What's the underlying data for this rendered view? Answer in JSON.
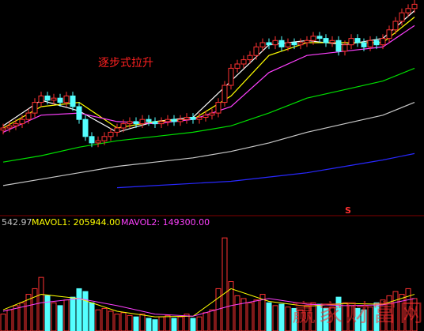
{
  "chart_data": {
    "type": "candlestick",
    "annotation": "逐步式拉升",
    "signal": "S",
    "watermark": "赢家财富网",
    "vol_label": "542.97",
    "mavol1_label": "MAVOL1: 205944.00",
    "mavol2_label": "MAVOL2: 149300.00",
    "up_color": "#ff3232",
    "down_color": "#54ffff",
    "ylim": [
      0,
      100
    ],
    "open": [
      39,
      40,
      41,
      42,
      44,
      47,
      52,
      55,
      53,
      54,
      52,
      55,
      50,
      44,
      36,
      33,
      34,
      36,
      38,
      40,
      42,
      43,
      42,
      44,
      43,
      42,
      43,
      44,
      43,
      44,
      45,
      44,
      45,
      46,
      47,
      52,
      60,
      68,
      70,
      72,
      74,
      78,
      80,
      79,
      81,
      78,
      80,
      79,
      80,
      81,
      83,
      82,
      80,
      81,
      76,
      79,
      82,
      80,
      78,
      81,
      79,
      82,
      86,
      90,
      94,
      96
    ],
    "close": [
      40,
      41,
      42,
      44,
      47,
      52,
      55,
      53,
      54,
      52,
      55,
      50,
      44,
      36,
      33,
      34,
      36,
      38,
      40,
      42,
      43,
      42,
      44,
      43,
      42,
      43,
      44,
      43,
      44,
      45,
      44,
      45,
      46,
      47,
      52,
      60,
      68,
      70,
      72,
      74,
      78,
      80,
      79,
      81,
      78,
      80,
      79,
      80,
      81,
      83,
      82,
      80,
      81,
      76,
      79,
      82,
      80,
      78,
      81,
      79,
      82,
      86,
      90,
      94,
      96,
      98
    ],
    "high": [
      42,
      43,
      44,
      46,
      49,
      54,
      57,
      57,
      56,
      56,
      57,
      57,
      52,
      46,
      38,
      36,
      38,
      40,
      42,
      44,
      45,
      45,
      46,
      46,
      45,
      45,
      46,
      46,
      46,
      47,
      47,
      47,
      48,
      49,
      54,
      62,
      70,
      72,
      74,
      76,
      80,
      82,
      82,
      83,
      83,
      82,
      82,
      82,
      83,
      85,
      85,
      84,
      83,
      83,
      81,
      84,
      84,
      82,
      83,
      83,
      84,
      88,
      92,
      96,
      98,
      100
    ],
    "low": [
      37,
      38,
      39,
      40,
      42,
      45,
      50,
      51,
      51,
      50,
      50,
      48,
      42,
      34,
      31,
      31,
      32,
      34,
      36,
      38,
      40,
      40,
      40,
      41,
      40,
      40,
      41,
      41,
      41,
      42,
      42,
      42,
      43,
      44,
      45,
      50,
      58,
      66,
      68,
      70,
      72,
      76,
      77,
      77,
      76,
      76,
      77,
      77,
      78,
      79,
      80,
      78,
      78,
      74,
      74,
      77,
      78,
      76,
      76,
      77,
      77,
      80,
      84,
      88,
      92,
      94
    ],
    "ma_x": [
      0,
      6,
      12,
      18,
      24,
      30,
      36,
      42,
      48,
      54,
      60,
      65
    ],
    "ma_series": [
      {
        "color": "#ffffff",
        "values": [
          41,
          53,
          48,
          38,
          43,
          45,
          62,
          79,
          81,
          79,
          82,
          95
        ]
      },
      {
        "color": "#ffff00",
        "values": [
          40,
          50,
          52,
          40,
          43,
          44,
          55,
          74,
          80,
          80,
          80,
          92
        ]
      },
      {
        "color": "#ff40ff",
        "values": [
          38,
          46,
          47,
          43,
          42,
          44,
          50,
          66,
          74,
          76,
          78,
          88
        ]
      },
      {
        "color": "#00e000",
        "values": [
          24,
          27,
          31,
          34,
          36,
          38,
          41,
          47,
          54,
          58,
          62,
          68
        ]
      },
      {
        "color": "#c8c8c8",
        "values": [
          13,
          16,
          19,
          22,
          24,
          26,
          29,
          33,
          38,
          42,
          46,
          52
        ]
      },
      {
        "color": "#2828ff",
        "values": [
          null,
          null,
          null,
          12,
          13,
          14,
          15,
          17,
          19,
          22,
          25,
          28
        ]
      }
    ],
    "vol_ylim": [
      0,
      700000
    ],
    "volume": [
      120000,
      150000,
      180000,
      200000,
      260000,
      300000,
      380000,
      250000,
      200000,
      180000,
      220000,
      240000,
      300000,
      280000,
      200000,
      150000,
      160000,
      140000,
      120000,
      130000,
      110000,
      100000,
      120000,
      90000,
      80000,
      100000,
      110000,
      90000,
      100000,
      120000,
      90000,
      100000,
      130000,
      150000,
      300000,
      660000,
      350000,
      250000,
      230000,
      200000,
      220000,
      260000,
      200000,
      180000,
      190000,
      170000,
      160000,
      150000,
      180000,
      200000,
      190000,
      160000,
      170000,
      240000,
      200000,
      180000,
      160000,
      150000,
      170000,
      200000,
      220000,
      250000,
      280000,
      260000,
      300000,
      230000
    ],
    "mavol_series": [
      {
        "color": "#ffff00",
        "values": [
          150000,
          260000,
          230000,
          140000,
          100000,
          105000,
          300000,
          210000,
          175000,
          195000,
          190000,
          260000
        ]
      },
      {
        "color": "#ff40ff",
        "values": [
          140000,
          200000,
          230000,
          180000,
          120000,
          105000,
          180000,
          230000,
          190000,
          180000,
          185000,
          230000
        ]
      }
    ]
  }
}
